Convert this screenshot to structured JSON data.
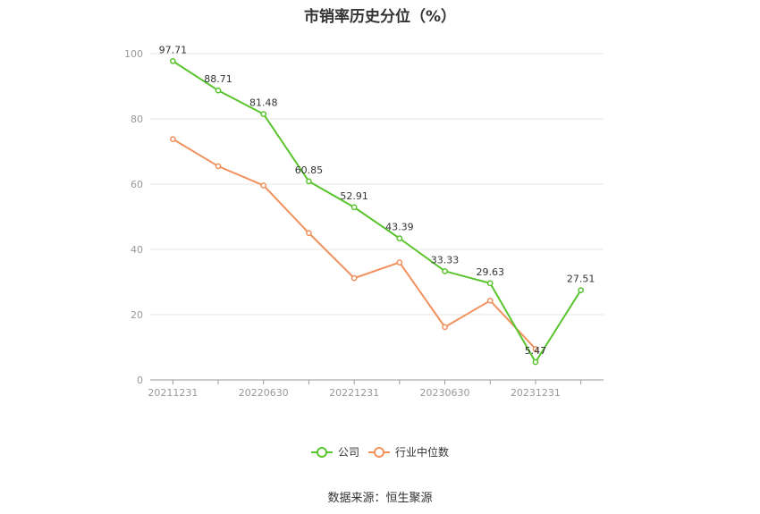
{
  "title": "市销率历史分位（%）",
  "source": "数据来源：恒生聚源",
  "chart_data": {
    "type": "line",
    "title": "市销率历史分位（%）",
    "xlabel": "",
    "ylabel": "",
    "x": [
      "20211231",
      "20220331",
      "20220630",
      "20220930",
      "20221231",
      "20230331",
      "20230630",
      "20230930",
      "20231231",
      "20240331"
    ],
    "x_tick_labels": [
      "20211231",
      "20220630",
      "20221231",
      "20230630",
      "20231231"
    ],
    "y_ticks": [
      0,
      20,
      40,
      60,
      80,
      100
    ],
    "ylim": [
      0,
      100
    ],
    "grid": true,
    "legend_position": "bottom-center",
    "series": [
      {
        "name": "公司",
        "color": "#5ac42e",
        "values": [
          97.71,
          88.71,
          81.48,
          60.85,
          52.91,
          43.39,
          33.33,
          29.63,
          5.47,
          27.51
        ],
        "labels": [
          "97.71",
          "88.71",
          "81.48",
          "60.85",
          "52.91",
          "43.39",
          "33.33",
          "29.63",
          "5.47",
          "27.51"
        ]
      },
      {
        "name": "行业中位数",
        "color": "#f0915e",
        "values": [
          73.8,
          65.5,
          59.6,
          45.0,
          31.2,
          36.0,
          16.2,
          24.3,
          9.5,
          null
        ]
      }
    ]
  }
}
